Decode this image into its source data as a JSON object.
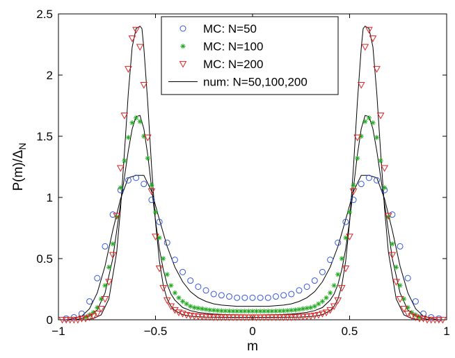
{
  "chart_data": {
    "type": "scatter",
    "title": "",
    "xlabel": "m",
    "ylabel_main": "P(m)/Δ",
    "ylabel_sub": "N",
    "xlim": [
      -1,
      1
    ],
    "ylim": [
      0,
      2.5
    ],
    "grid": false,
    "legend_position": "top-center",
    "x_ticks": [
      -1,
      -0.5,
      0,
      0.5,
      1
    ],
    "x_tick_labels": [
      "−1",
      "−0.5",
      "0",
      "0.5",
      "1"
    ],
    "y_ticks": [
      0,
      0.5,
      1,
      1.5,
      2,
      2.5
    ],
    "y_tick_labels": [
      "0",
      "0.5",
      "1",
      "1.5",
      "2",
      "2.5"
    ],
    "series": [
      {
        "name": "MC: N=50",
        "marker": "circle",
        "color": "#3355dd",
        "x": [
          -0.96,
          -0.92,
          -0.88,
          -0.84,
          -0.8,
          -0.76,
          -0.72,
          -0.68,
          -0.64,
          -0.6,
          -0.56,
          -0.52,
          -0.48,
          -0.44,
          -0.4,
          -0.36,
          -0.32,
          -0.28,
          -0.24,
          -0.2,
          -0.16,
          -0.12,
          -0.08,
          -0.04,
          0,
          0.04,
          0.08,
          0.12,
          0.16,
          0.2,
          0.24,
          0.28,
          0.32,
          0.36,
          0.4,
          0.44,
          0.48,
          0.52,
          0.56,
          0.6,
          0.64,
          0.68,
          0.72,
          0.76,
          0.8,
          0.84,
          0.88,
          0.92,
          0.96
        ],
        "y": [
          0.01,
          0.02,
          0.05,
          0.15,
          0.34,
          0.6,
          0.86,
          1.06,
          1.14,
          1.16,
          1.11,
          0.98,
          0.8,
          0.63,
          0.49,
          0.39,
          0.32,
          0.27,
          0.24,
          0.21,
          0.2,
          0.19,
          0.18,
          0.18,
          0.18,
          0.18,
          0.18,
          0.19,
          0.2,
          0.21,
          0.24,
          0.27,
          0.32,
          0.39,
          0.49,
          0.63,
          0.8,
          0.98,
          1.11,
          1.16,
          1.14,
          1.06,
          0.86,
          0.6,
          0.34,
          0.15,
          0.05,
          0.02,
          0.01
        ]
      },
      {
        "name": "MC: N=100",
        "marker": "asterisk",
        "color": "#22aa22",
        "x": [
          -0.86,
          -0.84,
          -0.82,
          -0.8,
          -0.78,
          -0.76,
          -0.74,
          -0.72,
          -0.7,
          -0.68,
          -0.66,
          -0.64,
          -0.62,
          -0.6,
          -0.58,
          -0.56,
          -0.54,
          -0.52,
          -0.5,
          -0.48,
          -0.46,
          -0.44,
          -0.42,
          -0.4,
          -0.38,
          -0.36,
          -0.34,
          -0.32,
          -0.3,
          -0.28,
          -0.26,
          -0.24,
          -0.22,
          -0.2,
          -0.18,
          -0.16,
          -0.14,
          -0.12,
          -0.1,
          -0.08,
          -0.06,
          -0.04,
          -0.02,
          0,
          0.02,
          0.04,
          0.06,
          0.08,
          0.1,
          0.12,
          0.14,
          0.16,
          0.18,
          0.2,
          0.22,
          0.24,
          0.26,
          0.28,
          0.3,
          0.32,
          0.34,
          0.36,
          0.38,
          0.4,
          0.42,
          0.44,
          0.46,
          0.48,
          0.5,
          0.52,
          0.54,
          0.56,
          0.58,
          0.6,
          0.62,
          0.64,
          0.66,
          0.68,
          0.7,
          0.72,
          0.74,
          0.76,
          0.78,
          0.8,
          0.82,
          0.84,
          0.86
        ],
        "y": [
          0.02,
          0.04,
          0.06,
          0.1,
          0.17,
          0.28,
          0.43,
          0.62,
          0.84,
          1.08,
          1.3,
          1.49,
          1.61,
          1.65,
          1.62,
          1.5,
          1.32,
          1.1,
          0.88,
          0.67,
          0.5,
          0.37,
          0.28,
          0.22,
          0.18,
          0.15,
          0.13,
          0.11,
          0.1,
          0.095,
          0.09,
          0.085,
          0.08,
          0.078,
          0.075,
          0.073,
          0.072,
          0.071,
          0.07,
          0.07,
          0.07,
          0.07,
          0.07,
          0.07,
          0.07,
          0.07,
          0.07,
          0.07,
          0.07,
          0.071,
          0.072,
          0.073,
          0.075,
          0.078,
          0.08,
          0.085,
          0.09,
          0.095,
          0.1,
          0.11,
          0.13,
          0.15,
          0.18,
          0.22,
          0.28,
          0.37,
          0.5,
          0.67,
          0.88,
          1.1,
          1.32,
          1.5,
          1.62,
          1.65,
          1.61,
          1.49,
          1.3,
          1.08,
          0.84,
          0.62,
          0.43,
          0.28,
          0.17,
          0.1,
          0.06,
          0.04,
          0.02
        ]
      },
      {
        "name": "MC: N=200",
        "marker": "triangle-down",
        "color": "#dd2222",
        "x": [
          -0.98,
          -0.96,
          -0.94,
          -0.92,
          -0.9,
          -0.88,
          -0.86,
          -0.84,
          -0.82,
          -0.8,
          -0.78,
          -0.76,
          -0.74,
          -0.72,
          -0.7,
          -0.68,
          -0.66,
          -0.64,
          -0.62,
          -0.6,
          -0.58,
          -0.56,
          -0.54,
          -0.52,
          -0.5,
          -0.48,
          -0.46,
          -0.44,
          -0.42,
          -0.4,
          -0.38,
          -0.36,
          -0.34,
          -0.32,
          -0.3,
          -0.28,
          -0.26,
          -0.24,
          -0.22,
          -0.2,
          -0.18,
          -0.16,
          -0.14,
          -0.12,
          -0.1,
          -0.08,
          -0.06,
          -0.04,
          -0.02,
          0,
          0.02,
          0.04,
          0.06,
          0.08,
          0.1,
          0.12,
          0.14,
          0.16,
          0.18,
          0.2,
          0.22,
          0.24,
          0.26,
          0.28,
          0.3,
          0.32,
          0.34,
          0.36,
          0.38,
          0.4,
          0.42,
          0.44,
          0.46,
          0.48,
          0.5,
          0.52,
          0.54,
          0.56,
          0.58,
          0.6,
          0.62,
          0.64,
          0.66,
          0.68,
          0.7,
          0.72,
          0.74,
          0.76,
          0.78,
          0.8,
          0.82,
          0.84,
          0.86,
          0.88,
          0.9,
          0.92,
          0.94,
          0.96,
          0.98
        ],
        "y": [
          0,
          0,
          0,
          0,
          0,
          0.01,
          0.01,
          0.02,
          0.03,
          0.05,
          0.09,
          0.17,
          0.31,
          0.53,
          0.85,
          1.24,
          1.67,
          2.05,
          2.3,
          2.37,
          2.23,
          1.92,
          1.49,
          1.05,
          0.68,
          0.42,
          0.26,
          0.16,
          0.11,
          0.08,
          0.06,
          0.05,
          0.04,
          0.035,
          0.03,
          0.028,
          0.026,
          0.024,
          0.022,
          0.02,
          0.02,
          0.02,
          0.02,
          0.02,
          0.02,
          0.02,
          0.02,
          0.02,
          0.02,
          0.02,
          0.02,
          0.02,
          0.02,
          0.02,
          0.02,
          0.02,
          0.02,
          0.02,
          0.02,
          0.02,
          0.022,
          0.024,
          0.026,
          0.028,
          0.03,
          0.035,
          0.04,
          0.05,
          0.06,
          0.08,
          0.11,
          0.16,
          0.26,
          0.42,
          0.68,
          1.05,
          1.49,
          1.92,
          2.23,
          2.37,
          2.3,
          2.05,
          1.67,
          1.24,
          0.85,
          0.53,
          0.31,
          0.17,
          0.09,
          0.05,
          0.03,
          0.02,
          0.01,
          0.01,
          0,
          0,
          0,
          0,
          0
        ]
      }
    ],
    "lines": [
      {
        "name": "num: N=50,100,200",
        "label_shared": true,
        "color": "#000000",
        "curves": [
          {
            "x": [
              -1,
              -0.96,
              -0.92,
              -0.88,
              -0.84,
              -0.8,
              -0.76,
              -0.72,
              -0.68,
              -0.64,
              -0.6,
              -0.56,
              -0.52,
              -0.48,
              -0.44,
              -0.4,
              -0.36,
              -0.32,
              -0.28,
              -0.24,
              -0.2,
              -0.16,
              -0.12,
              -0.08,
              -0.04,
              0,
              0.04,
              0.08,
              0.12,
              0.16,
              0.2,
              0.24,
              0.28,
              0.32,
              0.36,
              0.4,
              0.44,
              0.48,
              0.52,
              0.56,
              0.6,
              0.64,
              0.68,
              0.72,
              0.76,
              0.8,
              0.84,
              0.88,
              0.92,
              0.96,
              1
            ],
            "y": [
              0,
              0,
              0.01,
              0.03,
              0.09,
              0.22,
              0.44,
              0.73,
              0.99,
              1.16,
              1.18,
              1.18,
              1.05,
              0.82,
              0.6,
              0.43,
              0.31,
              0.23,
              0.18,
              0.15,
              0.13,
              0.12,
              0.115,
              0.11,
              0.11,
              0.11,
              0.11,
              0.11,
              0.115,
              0.12,
              0.13,
              0.15,
              0.18,
              0.23,
              0.31,
              0.43,
              0.6,
              0.82,
              1.05,
              1.18,
              1.18,
              1.16,
              0.99,
              0.73,
              0.44,
              0.22,
              0.09,
              0.03,
              0.01,
              0,
              0
            ]
          },
          {
            "x": [
              -1,
              -0.96,
              -0.92,
              -0.88,
              -0.84,
              -0.8,
              -0.76,
              -0.72,
              -0.68,
              -0.64,
              -0.62,
              -0.6,
              -0.58,
              -0.56,
              -0.54,
              -0.52,
              -0.5,
              -0.48,
              -0.46,
              -0.44,
              -0.42,
              -0.4,
              -0.36,
              -0.32,
              -0.28,
              -0.24,
              -0.2,
              -0.16,
              -0.12,
              -0.08,
              -0.04,
              0,
              0.04,
              0.08,
              0.12,
              0.16,
              0.2,
              0.24,
              0.28,
              0.32,
              0.36,
              0.4,
              0.42,
              0.44,
              0.46,
              0.48,
              0.5,
              0.52,
              0.54,
              0.56,
              0.58,
              0.6,
              0.62,
              0.64,
              0.68,
              0.72,
              0.76,
              0.8,
              0.84,
              0.88,
              0.92,
              0.96,
              1
            ],
            "y": [
              0,
              0,
              0,
              0.01,
              0.03,
              0.08,
              0.22,
              0.5,
              0.95,
              1.38,
              1.56,
              1.66,
              1.67,
              1.56,
              1.35,
              1.08,
              0.81,
              0.58,
              0.41,
              0.29,
              0.21,
              0.16,
              0.1,
              0.075,
              0.06,
              0.052,
              0.047,
              0.044,
              0.042,
              0.041,
              0.04,
              0.04,
              0.04,
              0.041,
              0.042,
              0.044,
              0.047,
              0.052,
              0.06,
              0.075,
              0.1,
              0.16,
              0.21,
              0.29,
              0.41,
              0.58,
              0.81,
              1.08,
              1.35,
              1.56,
              1.67,
              1.66,
              1.56,
              1.38,
              0.95,
              0.5,
              0.22,
              0.08,
              0.03,
              0.01,
              0,
              0,
              0
            ]
          },
          {
            "x": [
              -1,
              -0.92,
              -0.86,
              -0.82,
              -0.78,
              -0.74,
              -0.7,
              -0.68,
              -0.66,
              -0.64,
              -0.62,
              -0.6,
              -0.58,
              -0.57,
              -0.56,
              -0.54,
              -0.52,
              -0.5,
              -0.48,
              -0.46,
              -0.44,
              -0.42,
              -0.4,
              -0.36,
              -0.32,
              -0.28,
              -0.24,
              -0.2,
              -0.1,
              0,
              0.1,
              0.2,
              0.24,
              0.28,
              0.32,
              0.36,
              0.4,
              0.42,
              0.44,
              0.46,
              0.48,
              0.5,
              0.52,
              0.54,
              0.56,
              0.57,
              0.58,
              0.6,
              0.62,
              0.64,
              0.66,
              0.68,
              0.7,
              0.74,
              0.78,
              0.82,
              0.86,
              0.92,
              1
            ],
            "y": [
              0,
              0,
              0,
              0.01,
              0.04,
              0.17,
              0.55,
              0.91,
              1.37,
              1.85,
              2.23,
              2.38,
              2.4,
              2.38,
              2.22,
              1.78,
              1.25,
              0.8,
              0.48,
              0.28,
              0.17,
              0.11,
              0.075,
              0.042,
              0.03,
              0.025,
              0.022,
              0.021,
              0.02,
              0.02,
              0.02,
              0.021,
              0.022,
              0.025,
              0.03,
              0.042,
              0.075,
              0.11,
              0.17,
              0.28,
              0.48,
              0.8,
              1.25,
              1.78,
              2.22,
              2.38,
              2.4,
              2.38,
              2.23,
              1.85,
              1.37,
              0.91,
              0.55,
              0.17,
              0.04,
              0.01,
              0,
              0,
              0
            ]
          }
        ]
      }
    ]
  }
}
